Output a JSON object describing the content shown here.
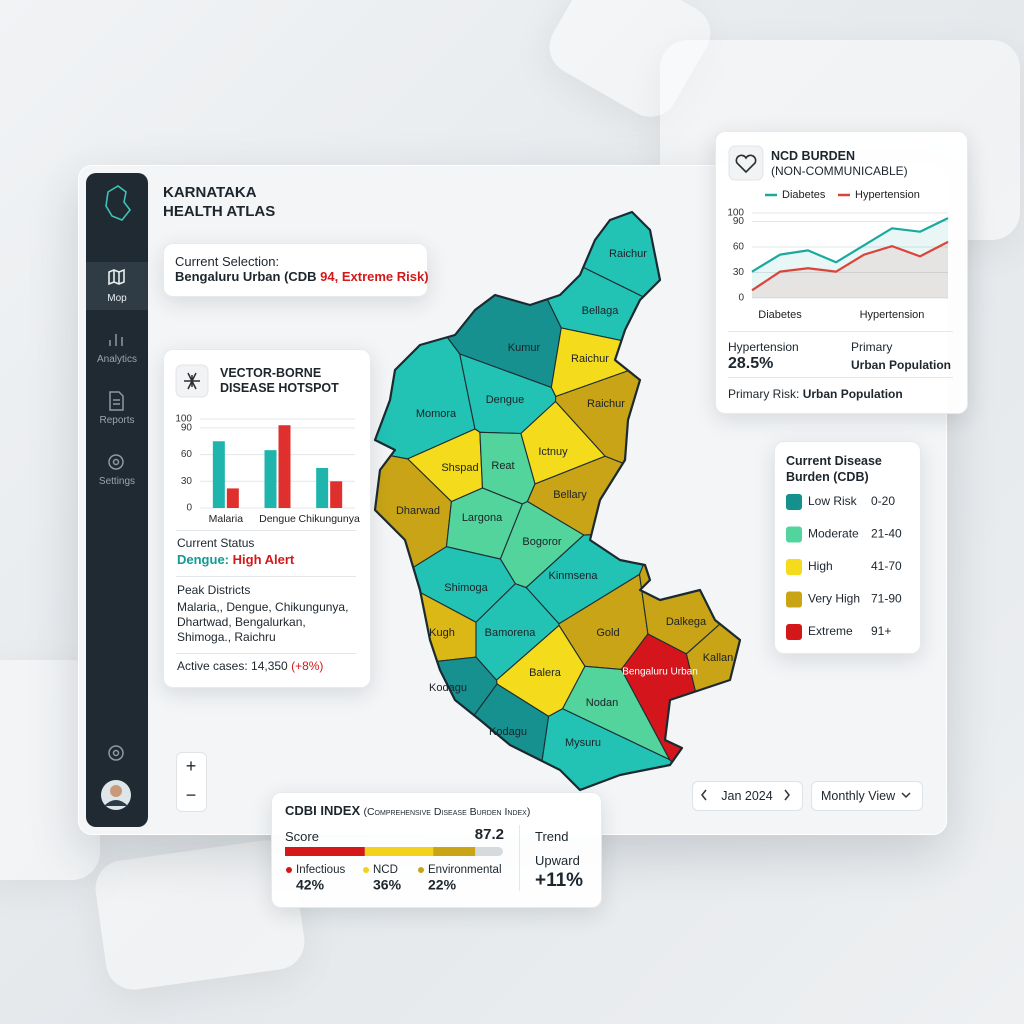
{
  "sidebar": {
    "items": [
      "Mop",
      "Analytics",
      "Reports",
      "Settings"
    ]
  },
  "header": {
    "title_line1": "KARNATAKA",
    "title_line2": "HEALTH ATLAS"
  },
  "selection": {
    "label": "Current Selection:",
    "district": "Bengaluru Urban (CDB ",
    "risk": "94, Extreme Risk)"
  },
  "vector_panel": {
    "title": "VECTOR-BORNE DISEASE HOTSPOT",
    "status_label": "Current Status",
    "status_disease": "Dengue:",
    "status_level": "High Alert",
    "peak_label": "Peak Districts",
    "peak_districts": "Malaria,, Dengue, Chikungunya, Dhartwad, Bengalurkan, Shimoga., Raichru",
    "active_cases": "Active cases: 14,350",
    "active_change": "(+8%)"
  },
  "ncd_panel": {
    "title": "NCD BURDEN",
    "subtitle": "(NON-COMMUNICABLE)",
    "stat_name": "Hypertension",
    "stat_value": "28.5%",
    "primary_label": "Primary",
    "primary_value": "Urban Population",
    "risk_label": "Primary Risk:",
    "risk_value": "Urban Population"
  },
  "legend": {
    "title": "Current Disease Burden (CDB)",
    "items": [
      {
        "name": "Low Risk",
        "range": "0-20",
        "color": "#14918f"
      },
      {
        "name": "Moderate",
        "range": "21-40",
        "color": "#52d49d"
      },
      {
        "name": "High",
        "range": "41-70",
        "color": "#f4dc1c"
      },
      {
        "name": "Very High",
        "range": "71-90",
        "color": "#c9a415"
      },
      {
        "name": "Extreme",
        "range": "91+",
        "color": "#d4181a"
      }
    ]
  },
  "map": {
    "districts": [
      {
        "name": "Raichur",
        "color": "#22c3b5"
      },
      {
        "name": "Bellaga",
        "color": "#22c3b5"
      },
      {
        "name": "Kumur",
        "color": "#14918f"
      },
      {
        "name": "Raichur",
        "color": "#f4dc1c"
      },
      {
        "name": "Momora",
        "color": "#22c3b5"
      },
      {
        "name": "Dengue",
        "color": "#22c3b5"
      },
      {
        "name": "Raichur",
        "color": "#c9a415"
      },
      {
        "name": "Ictnuy",
        "color": "#f4dc1c"
      },
      {
        "name": "Shspad",
        "color": "#f4dc1c"
      },
      {
        "name": "Reat",
        "color": "#52d49d"
      },
      {
        "name": "Bellary",
        "color": "#c9a415"
      },
      {
        "name": "Dharwad",
        "color": "#c9a415"
      },
      {
        "name": "Largona",
        "color": "#52d49d"
      },
      {
        "name": "Bogoror",
        "color": "#52d49d"
      },
      {
        "name": "Shimoga",
        "color": "#22c3b5"
      },
      {
        "name": "Kinmsena",
        "color": "#22c3b5"
      },
      {
        "name": "Kugh",
        "color": "#dcb817"
      },
      {
        "name": "Bamorena",
        "color": "#22c3b5"
      },
      {
        "name": "Gold",
        "color": "#c9a415"
      },
      {
        "name": "Dalkega",
        "color": "#c9a415"
      },
      {
        "name": "Kallan",
        "color": "#c9a415"
      },
      {
        "name": "Bengaluru Urban",
        "color": "#d4181a"
      },
      {
        "name": "Balera",
        "color": "#f4dc1c"
      },
      {
        "name": "Kodagu",
        "color": "#14918f"
      },
      {
        "name": "Nodan",
        "color": "#52d49d"
      },
      {
        "name": "Kodagu",
        "color": "#14918f"
      },
      {
        "name": "Mysuru",
        "color": "#22c3b5"
      }
    ]
  },
  "cdbi": {
    "title": "CDBI INDEX",
    "subtitle": "(Comprehensive Disease Burden Index)",
    "score_label": "Score",
    "score": 87.2,
    "xlim": [
      0,
      100
    ],
    "components": [
      {
        "name": "Infectious",
        "value": 42,
        "label": "42%",
        "color": "#d4181a"
      },
      {
        "name": "NCD",
        "value": 36,
        "label": "36%",
        "color": "#f2d21b"
      },
      {
        "name": "Environmental",
        "value": 22,
        "label": "22%",
        "color": "#c9a415"
      }
    ],
    "trend_label": "Trend",
    "trend_value": "Upward",
    "trend_change": "+11%"
  },
  "controls": {
    "zoom_in": "+",
    "zoom_out": "−",
    "date": "Jan 2024",
    "view": "Monthly View"
  },
  "chart_data": [
    {
      "type": "bar",
      "categories": [
        "Malaria",
        "Dengue",
        "Chikungunya"
      ],
      "series": [
        {
          "color": "#1fb5ad",
          "values": [
            75,
            65,
            45
          ]
        },
        {
          "color": "#e0302d",
          "values": [
            22,
            93,
            30
          ]
        }
      ],
      "ylim": [
        0,
        100
      ],
      "yticks": [
        0,
        30,
        60,
        90,
        100
      ],
      "grid": true
    },
    {
      "type": "line",
      "categories": [
        null,
        "Diabetes",
        null,
        null,
        null,
        "Hypertension",
        null,
        null
      ],
      "series": [
        {
          "name": "Diabetes",
          "color": "#1aa9a0",
          "values": [
            31,
            51,
            56,
            42,
            62,
            82,
            78,
            94
          ]
        },
        {
          "name": "Hypertension",
          "color": "#d9453b",
          "values": [
            9,
            31,
            35,
            31,
            51,
            61,
            49,
            66
          ]
        }
      ],
      "ylim": [
        0,
        100
      ],
      "yticks": [
        0,
        30,
        60,
        90,
        100
      ],
      "grid": true
    }
  ]
}
